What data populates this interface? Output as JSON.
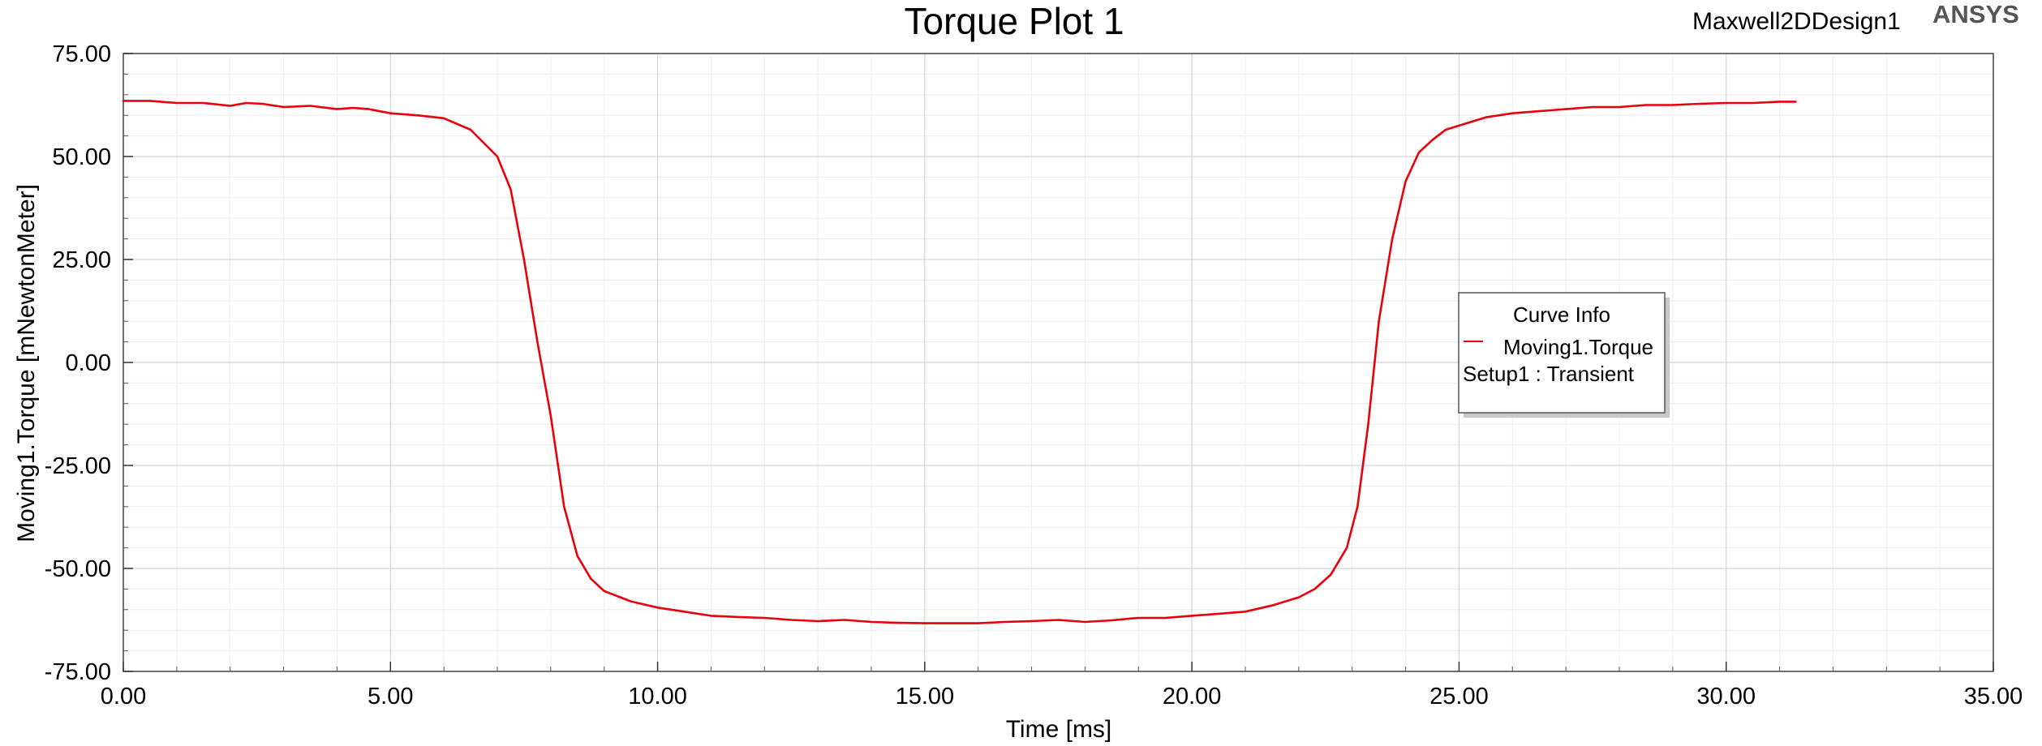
{
  "header": {
    "design_name": "Maxwell2DDesign1",
    "brand": "ANSYS"
  },
  "legend": {
    "title": "Curve Info",
    "entry_label": "Moving1.Torque",
    "entry_sub": "Setup1 : Transient",
    "placement": "right-middle"
  },
  "chart_data": {
    "type": "line",
    "title": "Torque Plot 1",
    "xlabel": "Time [ms]",
    "ylabel": "Moving1.Torque [mNewtonMeter]",
    "xlim": [
      0,
      35
    ],
    "ylim": [
      -75,
      75
    ],
    "xticks": [
      0,
      5,
      10,
      15,
      20,
      25,
      30,
      35
    ],
    "yticks": [
      75,
      50,
      25,
      0,
      -25,
      -50,
      -75
    ],
    "xtick_labels": [
      "0.00",
      "5.00",
      "10.00",
      "15.00",
      "20.00",
      "25.00",
      "30.00",
      "35.00"
    ],
    "ytick_labels": [
      "75.00",
      "50.00",
      "25.00",
      "0.00",
      "-25.00",
      "-50.00",
      "-75.00"
    ],
    "grid": true,
    "series": [
      {
        "name": "Moving1.Torque",
        "color": "#e8000b",
        "x": [
          0,
          0.5,
          1.0,
          1.5,
          2.0,
          2.3,
          2.6,
          3.0,
          3.5,
          4.0,
          4.3,
          4.6,
          5.0,
          5.5,
          6.0,
          6.5,
          7.0,
          7.25,
          7.5,
          7.75,
          8.0,
          8.25,
          8.5,
          8.75,
          9.0,
          9.5,
          10.0,
          10.5,
          11.0,
          11.5,
          12.0,
          12.5,
          13.0,
          13.5,
          14.0,
          14.5,
          15.0,
          15.5,
          16.0,
          16.5,
          17.0,
          17.5,
          18.0,
          18.5,
          19.0,
          19.5,
          20.0,
          20.5,
          21.0,
          21.5,
          22.0,
          22.3,
          22.6,
          22.9,
          23.1,
          23.3,
          23.5,
          23.75,
          24.0,
          24.25,
          24.5,
          24.75,
          25.0,
          25.5,
          26.0,
          26.5,
          27.0,
          27.5,
          28.0,
          28.5,
          29.0,
          29.5,
          30.0,
          30.5,
          31.0,
          31.3
        ],
        "y": [
          63.5,
          63.5,
          63.0,
          63.0,
          62.3,
          63.0,
          62.8,
          62.0,
          62.3,
          61.5,
          61.8,
          61.5,
          60.5,
          60.0,
          59.3,
          56.5,
          50.0,
          42.0,
          25.0,
          5.0,
          -13.0,
          -35.0,
          -47.0,
          -52.5,
          -55.5,
          -58.0,
          -59.5,
          -60.5,
          -61.5,
          -61.8,
          -62.0,
          -62.5,
          -62.8,
          -62.5,
          -63.0,
          -63.2,
          -63.3,
          -63.3,
          -63.3,
          -63.0,
          -62.8,
          -62.5,
          -63.0,
          -62.6,
          -62.0,
          -62.0,
          -61.5,
          -61.0,
          -60.5,
          -59.0,
          -57.0,
          -55.0,
          -51.5,
          -45.0,
          -35.0,
          -15.0,
          10.0,
          30.0,
          44.0,
          51.0,
          54.0,
          56.5,
          57.5,
          59.5,
          60.5,
          61.0,
          61.5,
          62.0,
          62.0,
          62.5,
          62.5,
          62.8,
          63.0,
          63.0,
          63.3,
          63.3
        ]
      }
    ]
  }
}
